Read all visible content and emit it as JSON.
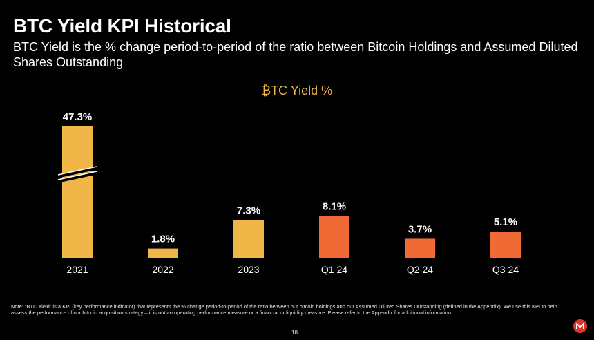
{
  "title": "BTC Yield KPI Historical",
  "subtitle": "BTC Yield is the % change period-to-period of the ratio between Bitcoin Holdings and Assumed Diluted Shares Outstanding",
  "note": "Note: “BTC Yield” is a KPI (key performance indicator) that represents the % change period-to-period of the ratio between our bitcoin holdings and our Assumed Diluted Shares Outstanding (defined in the Appendix). We use this KPI to help assess the performance of our bitcoin acquisition strategy – it is not an operating performance measure or a financial or liquidity measure. Please refer to the Appendix for additional information.",
  "page_number": "18",
  "logo_icon": "microstrategy-logo-icon",
  "colors": {
    "background": "#000000",
    "annual_bar": "#f1b648",
    "quarterly_bar": "#f06a35",
    "axis": "#d9d9d9",
    "text": "#ffffff"
  },
  "chart_data": {
    "type": "bar",
    "title": "₿TC Yield %",
    "categories": [
      "2021",
      "2022",
      "2023",
      "Q1 24",
      "Q2 24",
      "Q3 24"
    ],
    "values": [
      47.3,
      1.8,
      7.3,
      8.1,
      3.7,
      5.1
    ],
    "data_labels": [
      "47.3%",
      "1.8%",
      "7.3%",
      "8.1%",
      "3.7%",
      "5.1%"
    ],
    "bar_colors": [
      "#f1b648",
      "#f1b648",
      "#f1b648",
      "#f06a35",
      "#f06a35",
      "#f06a35"
    ],
    "axis_break_on": "2021",
    "xlabel": "",
    "ylabel": "",
    "y_axis_visible": false,
    "grid": false,
    "legend": "none"
  }
}
